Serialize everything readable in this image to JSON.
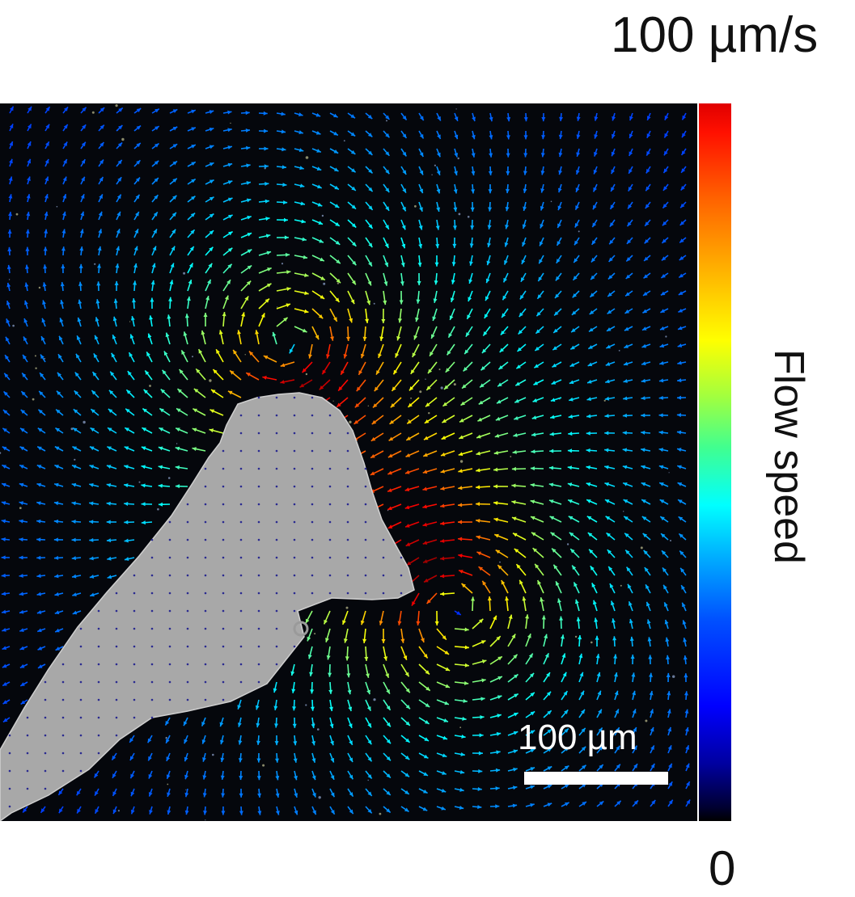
{
  "figure": {
    "colorbar": {
      "max_label": "100 µm/s",
      "min_label": "0",
      "title": "Flow speed",
      "colormap": "jet"
    },
    "scale_bar": {
      "label": "100 µm"
    },
    "colors": {
      "background": "#05070c",
      "cell_body": "#a8a8a8",
      "in_cell_vector": "#2a2a90"
    }
  }
}
